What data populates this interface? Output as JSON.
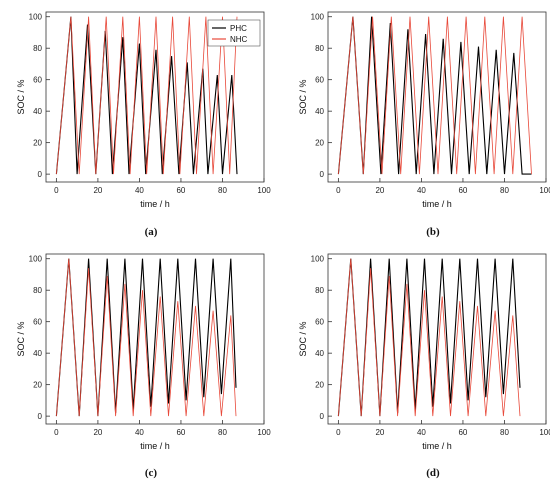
{
  "legend": {
    "placement": "top-right",
    "phc_label": "PHC",
    "nhc_label": "NHC"
  },
  "colors": {
    "phc": "#000000",
    "nhc": "#e8493a",
    "axis": "#333333"
  },
  "chart_data": [
    {
      "type": "line",
      "panel_label": "(a)",
      "xlabel": "time / h",
      "ylabel": "SOC / %",
      "xlim": [
        -5,
        100
      ],
      "ylim": [
        -5,
        103
      ],
      "xticks": [
        0,
        20,
        40,
        60,
        80,
        100
      ],
      "yticks": [
        0,
        20,
        40,
        60,
        80,
        100
      ],
      "grid": false,
      "legend": true,
      "series": [
        {
          "name": "PHC",
          "color": "#000000",
          "x": [
            0,
            7,
            10,
            15,
            19,
            23.5,
            27,
            32,
            35,
            40,
            43,
            48,
            51,
            55.5,
            59,
            63,
            66,
            70.5,
            73,
            77.5,
            80,
            84.5,
            87
          ],
          "y": [
            0,
            100,
            0,
            95,
            0,
            91,
            0,
            87,
            0,
            83,
            0,
            79,
            0,
            75,
            0,
            71,
            0,
            67,
            0,
            63,
            0,
            63,
            0
          ]
        },
        {
          "name": "NHC",
          "color": "#e8493a",
          "x": [
            0,
            7,
            11,
            15.5,
            19,
            24,
            27.5,
            32,
            35.5,
            40,
            43.5,
            48,
            51.5,
            56,
            59.5,
            64,
            67.5,
            72,
            75.5,
            80,
            83.5,
            87
          ],
          "y": [
            0,
            100,
            0,
            100,
            0,
            100,
            0,
            100,
            0,
            100,
            0,
            100,
            0,
            100,
            0,
            100,
            0,
            100,
            0,
            100,
            0,
            100
          ]
        }
      ]
    },
    {
      "type": "line",
      "panel_label": "(b)",
      "xlabel": "time / h",
      "ylabel": "SOC / %",
      "xlim": [
        -5,
        100
      ],
      "ylim": [
        -5,
        103
      ],
      "xticks": [
        0,
        20,
        40,
        60,
        80,
        100
      ],
      "yticks": [
        0,
        20,
        40,
        60,
        80,
        100
      ],
      "grid": false,
      "legend": false,
      "series": [
        {
          "name": "PHC",
          "color": "#000000",
          "x": [
            0,
            7,
            12,
            16,
            20.5,
            25,
            29,
            33.5,
            37.5,
            42,
            46,
            50.5,
            54.5,
            59,
            63,
            67.5,
            71.5,
            76,
            80,
            84.5,
            88.5,
            93
          ],
          "y": [
            0,
            100,
            0,
            100,
            0,
            96,
            0,
            92,
            0,
            89,
            0,
            86,
            0,
            84,
            0,
            81,
            0,
            79,
            0,
            77,
            0,
            0
          ]
        },
        {
          "name": "NHC",
          "color": "#e8493a",
          "x": [
            0,
            7,
            12,
            16.5,
            21,
            25.5,
            30,
            34.5,
            39,
            43.5,
            48,
            52.5,
            57,
            61.5,
            66,
            70.5,
            75,
            79.5,
            84,
            88.5,
            93
          ],
          "y": [
            0,
            100,
            0,
            100,
            0,
            100,
            0,
            100,
            0,
            100,
            0,
            100,
            0,
            100,
            0,
            100,
            0,
            100,
            0,
            100,
            0
          ]
        }
      ]
    },
    {
      "type": "line",
      "panel_label": "(c)",
      "xlabel": "time / h",
      "ylabel": "SOC / %",
      "xlim": [
        -5,
        100
      ],
      "ylim": [
        -5,
        103
      ],
      "xticks": [
        0,
        20,
        40,
        60,
        80,
        100
      ],
      "yticks": [
        0,
        20,
        40,
        60,
        80,
        100
      ],
      "grid": false,
      "legend": false,
      "series": [
        {
          "name": "PHC",
          "color": "#000000",
          "x": [
            0,
            6,
            11,
            15.5,
            20,
            24.5,
            28.5,
            33,
            37,
            41.5,
            45.5,
            50,
            54,
            58.5,
            62.5,
            67,
            71,
            75.5,
            79.5,
            84,
            86.5
          ],
          "y": [
            0,
            100,
            0,
            100,
            0,
            100,
            2,
            100,
            4,
            100,
            6,
            100,
            8,
            100,
            10,
            100,
            12,
            100,
            14,
            100,
            18
          ]
        },
        {
          "name": "NHC",
          "color": "#e8493a",
          "x": [
            0,
            6,
            11,
            15.5,
            20,
            24.5,
            28.5,
            33,
            37,
            41.5,
            45.5,
            50,
            54,
            58.5,
            62.5,
            67,
            71,
            75.5,
            79.5,
            84,
            86.5
          ],
          "y": [
            0,
            100,
            0,
            94,
            0,
            89,
            0,
            84,
            0,
            80,
            0,
            76,
            0,
            73,
            0,
            70,
            0,
            67,
            0,
            64,
            0
          ]
        }
      ]
    },
    {
      "type": "line",
      "panel_label": "(d)",
      "xlabel": "time / h",
      "ylabel": "SOC / %",
      "xlim": [
        -5,
        100
      ],
      "ylim": [
        -5,
        103
      ],
      "xticks": [
        0,
        20,
        40,
        60,
        80,
        100
      ],
      "yticks": [
        0,
        20,
        40,
        60,
        80,
        100
      ],
      "grid": false,
      "legend": false,
      "series": [
        {
          "name": "PHC",
          "color": "#000000",
          "x": [
            0,
            6,
            11,
            15.5,
            20,
            24.5,
            28.5,
            33,
            37,
            41.5,
            45.5,
            50,
            54,
            58.5,
            62.5,
            67,
            71,
            75.5,
            79.5,
            84,
            87.5
          ],
          "y": [
            0,
            100,
            0,
            100,
            0,
            100,
            2,
            100,
            4,
            100,
            6,
            100,
            8,
            100,
            10,
            100,
            12,
            100,
            14,
            100,
            18
          ]
        },
        {
          "name": "NHC",
          "color": "#e8493a",
          "x": [
            0,
            6,
            11,
            15.5,
            20,
            24.5,
            28.5,
            33,
            37,
            41.5,
            45.5,
            50,
            54,
            58.5,
            62.5,
            67,
            71,
            75.5,
            79.5,
            84,
            87.5
          ],
          "y": [
            0,
            100,
            0,
            94,
            0,
            89,
            0,
            84,
            0,
            80,
            0,
            76,
            0,
            73,
            0,
            70,
            0,
            67,
            0,
            64,
            0
          ]
        }
      ]
    }
  ]
}
